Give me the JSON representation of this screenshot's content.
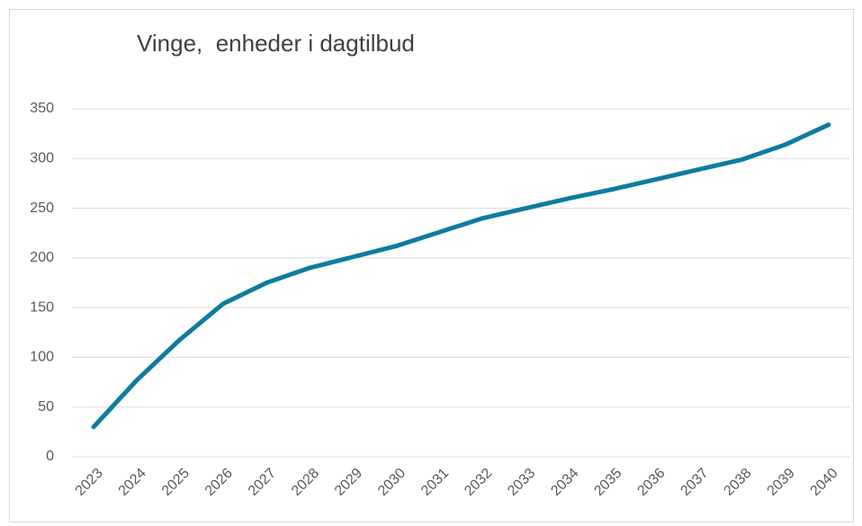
{
  "chart_data": {
    "type": "line",
    "title": "Vinge,  enheder i dagtilbud",
    "categories": [
      "2023",
      "2024",
      "2025",
      "2026",
      "2027",
      "2028",
      "2029",
      "2030",
      "2031",
      "2032",
      "2033",
      "2034",
      "2035",
      "2036",
      "2037",
      "2038",
      "2039",
      "2040"
    ],
    "values": [
      30,
      77,
      118,
      154,
      175,
      190,
      201,
      212,
      226,
      240,
      250,
      260,
      269,
      279,
      289,
      299,
      314,
      334
    ],
    "color": "#0e7c9e",
    "ylim": [
      0,
      350
    ],
    "yticks": [
      0,
      50,
      100,
      150,
      200,
      250,
      300,
      350
    ],
    "grid": true
  }
}
